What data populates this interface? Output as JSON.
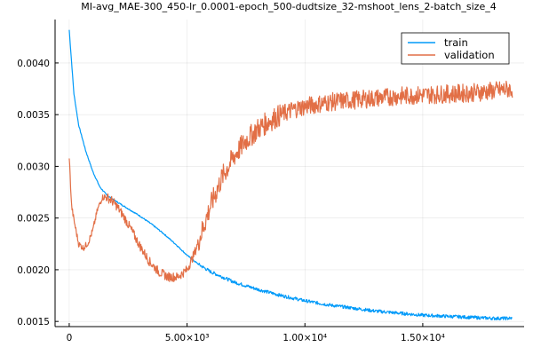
{
  "chart_data": {
    "type": "line",
    "title": "MI-avg_MAE-300_450-lr_0.0001-epoch_500-dudtsize_32-mshoot_lens_2-batch_size_4",
    "xlabel": "",
    "ylabel": "",
    "xlim": [
      -600,
      19300
    ],
    "ylim": [
      0.00145,
      0.00442
    ],
    "grid": true,
    "legend_position": "top-right",
    "x_ticks": [
      {
        "value": 0,
        "label": "0"
      },
      {
        "value": 5000,
        "label": "5.00×10³"
      },
      {
        "value": 10000,
        "label": "1.00×10⁴"
      },
      {
        "value": 15000,
        "label": "1.50×10⁴"
      }
    ],
    "y_ticks": [
      {
        "value": 0.0015,
        "label": "0.0015"
      },
      {
        "value": 0.002,
        "label": "0.0020"
      },
      {
        "value": 0.0025,
        "label": "0.0025"
      },
      {
        "value": 0.003,
        "label": "0.0030"
      },
      {
        "value": 0.0035,
        "label": "0.0035"
      },
      {
        "value": 0.004,
        "label": "0.0040"
      }
    ],
    "series": [
      {
        "name": "train",
        "color": "#009af9",
        "x": [
          0,
          200,
          400,
          700,
          1000,
          1300,
          1600,
          2000,
          2500,
          3000,
          3500,
          4000,
          4500,
          5000,
          5500,
          6000,
          7000,
          8000,
          9000,
          10000,
          11000,
          12000,
          13000,
          14000,
          15000,
          16000,
          17000,
          18000,
          18800
        ],
        "y": [
          0.00432,
          0.0037,
          0.0034,
          0.00315,
          0.00295,
          0.0028,
          0.00272,
          0.00266,
          0.00259,
          0.00252,
          0.00244,
          0.00235,
          0.00225,
          0.00214,
          0.00205,
          0.00198,
          0.00188,
          0.00181,
          0.00175,
          0.0017,
          0.00166,
          0.00163,
          0.0016,
          0.00158,
          0.00156,
          0.00155,
          0.00154,
          0.00153,
          0.00153
        ]
      },
      {
        "name": "validation",
        "color": "#e26f46",
        "x": [
          0,
          50,
          100,
          200,
          400,
          600,
          800,
          1000,
          1200,
          1400,
          1600,
          1800,
          2000,
          2300,
          2600,
          3000,
          3400,
          3800,
          4200,
          4600,
          5000,
          5300,
          5600,
          6000,
          6500,
          7000,
          7500,
          8000,
          8500,
          9000,
          9500,
          10000,
          11000,
          12000,
          13000,
          14000,
          15000,
          16000,
          17000,
          18000,
          18800
        ],
        "y": [
          0.0031,
          0.00285,
          0.00262,
          0.00248,
          0.00225,
          0.00221,
          0.00226,
          0.00238,
          0.00258,
          0.0027,
          0.0027,
          0.00267,
          0.00262,
          0.00252,
          0.0024,
          0.00223,
          0.00208,
          0.00198,
          0.00193,
          0.00193,
          0.002,
          0.00215,
          0.00235,
          0.00262,
          0.0029,
          0.0031,
          0.00325,
          0.00336,
          0.00344,
          0.0035,
          0.00355,
          0.00358,
          0.00362,
          0.00364,
          0.00366,
          0.00368,
          0.00369,
          0.0037,
          0.00371,
          0.00373,
          0.00375
        ]
      }
    ]
  }
}
